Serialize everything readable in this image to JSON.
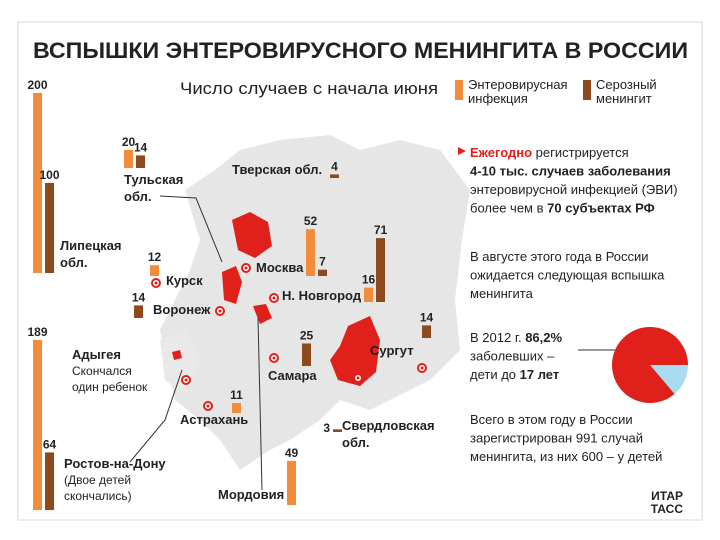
{
  "title": "ВСПЫШКИ ЭНТЕРОВИРУСНОГО МЕНИНГИТА В РОССИИ",
  "subtitle": "Число случаев с начала июня",
  "legend": [
    {
      "lines": [
        "Энтеровирусная",
        "инфекция"
      ],
      "color": "#f28c3a"
    },
    {
      "lines": [
        "Серозный",
        "менингит"
      ],
      "color": "#8e4a1c"
    }
  ],
  "regions": [
    {
      "lines": [
        "Липецкая",
        "обл."
      ],
      "enteroviral": 200,
      "serous": 100
    },
    {
      "lines": [
        "Тульская",
        "обл."
      ],
      "enteroviral": 20,
      "serous": 14
    },
    {
      "lines": [
        "Тверская обл."
      ],
      "serous": 4
    },
    {
      "lines": [
        "Москва"
      ],
      "enteroviral": 52,
      "serous": 7
    },
    {
      "lines": [
        "Н. Новгород"
      ],
      "enteroviral": 16,
      "serous": 71
    },
    {
      "lines": [
        "Курск"
      ],
      "enteroviral": 12
    },
    {
      "lines": [
        "Воронеж"
      ],
      "serous": 14
    },
    {
      "lines": [
        "Самара"
      ],
      "serous": 25
    },
    {
      "lines": [
        "Сургут"
      ],
      "serous": 14
    },
    {
      "lines": [
        "Астрахань"
      ],
      "enteroviral": 11
    },
    {
      "lines": [
        "Свердловская",
        "обл."
      ],
      "serous": 3
    },
    {
      "lines": [
        "Мордовия"
      ],
      "enteroviral": 49
    },
    {
      "lines": [
        "Ростов-на-Дону"
      ],
      "enteroviral": 189,
      "serous": 64,
      "note": [
        "(Двое детей",
        "скончались)"
      ]
    },
    {
      "lines": [
        "Адыгея"
      ],
      "note": [
        "Скончался",
        "один ребенок"
      ]
    }
  ],
  "notes": [
    {
      "lines": [
        [
          {
            "text": "Ежегодно",
            "style": "red-bold"
          },
          {
            "text": " регистрируется"
          }
        ],
        [
          {
            "text": "4-10 тыс. случаев заболевания",
            "style": "bold"
          }
        ],
        [
          {
            "text": "энтеровирусной инфекцией (ЭВИ)"
          }
        ],
        [
          {
            "text": "более чем в "
          },
          {
            "text": "70 субъектах РФ",
            "style": "bold"
          }
        ]
      ]
    },
    {
      "lines": [
        [
          {
            "text": "В августе этого года в России"
          }
        ],
        [
          {
            "text": "ожидается следующая вспышка"
          }
        ],
        [
          {
            "text": "менингита"
          }
        ]
      ]
    },
    {
      "lines": [
        [
          {
            "text": "В 2012 г. "
          },
          {
            "text": "86,2%",
            "style": "bold"
          }
        ],
        [
          {
            "text": "заболевших –"
          }
        ],
        [
          {
            "text": "дети до "
          },
          {
            "text": "17 лет",
            "style": "bold"
          }
        ]
      ]
    },
    {
      "lines": [
        [
          {
            "text": "Всего в этом году в России"
          }
        ],
        [
          {
            "text": "зарегистрирован 991 случай"
          }
        ],
        [
          {
            "text": "менингита, из них 600 – у детей"
          }
        ]
      ]
    }
  ],
  "pie": {
    "value": 86.2,
    "colors": [
      "#e0201b",
      "#a9dcf0"
    ]
  },
  "logo": [
    "ИТАР",
    "ТАСС"
  ]
}
